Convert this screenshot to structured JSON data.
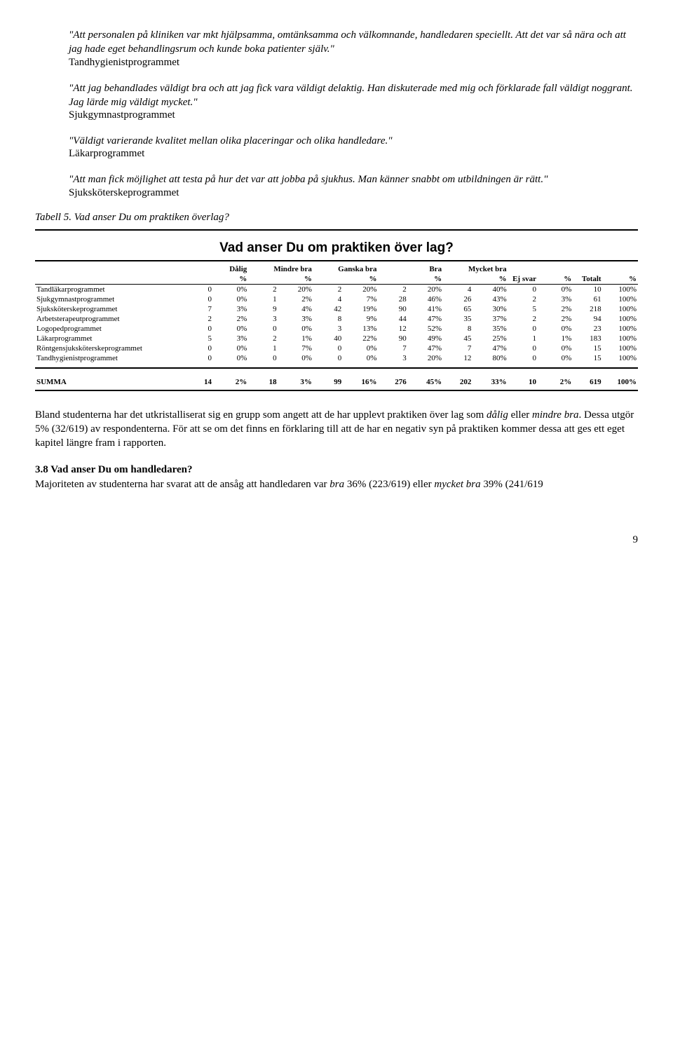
{
  "quotes": [
    {
      "text": "\"Att personalen på kliniken var mkt hjälpsamma, omtänksamma och välkomnande, handledaren speciellt. Att det var så nära och att jag hade eget behandlingsrum och kunde boka patienter själv.\"",
      "source": "Tandhygienistprogrammet"
    },
    {
      "text": "\"Att jag behandlades väldigt bra och att jag fick vara väldigt delaktig. Han diskuterade med mig och förklarade fall väldigt noggrant. Jag lärde mig väldigt mycket.\"",
      "source": "Sjukgymnastprogrammet"
    },
    {
      "text": "\"Väldigt varierande kvalitet mellan olika placeringar och olika handledare.\"",
      "source": "Läkarprogrammet"
    },
    {
      "text": "\"Att man fick möjlighet att testa på hur det var att jobba på sjukhus. Man känner snabbt om utbildningen är rätt.\"",
      "source": "Sjuksköterskeprogrammet"
    }
  ],
  "caption": "Tabell 5. Vad anser Du om praktiken överlag?",
  "table_title": "Vad anser Du om praktiken över lag?",
  "headers": {
    "c1": "Dålig",
    "c2": "Mindre bra",
    "c3": "Ganska bra",
    "c4": "Bra",
    "c5": "Mycket bra",
    "c6": "Ej svar",
    "c7": "Totalt",
    "pct": "%"
  },
  "rows": [
    {
      "label": "Tandläkarprogrammet",
      "n1": "0",
      "p1": "0%",
      "n2": "2",
      "p2": "20%",
      "n3": "2",
      "p3": "20%",
      "n4": "2",
      "p4": "20%",
      "n5": "4",
      "p5": "40%",
      "n6": "0",
      "p6": "0%",
      "n7": "10",
      "p7": "100%"
    },
    {
      "label": "Sjukgymnastprogrammet",
      "n1": "0",
      "p1": "0%",
      "n2": "1",
      "p2": "2%",
      "n3": "4",
      "p3": "7%",
      "n4": "28",
      "p4": "46%",
      "n5": "26",
      "p5": "43%",
      "n6": "2",
      "p6": "3%",
      "n7": "61",
      "p7": "100%"
    },
    {
      "label": "Sjuksköterskeprogrammet",
      "n1": "7",
      "p1": "3%",
      "n2": "9",
      "p2": "4%",
      "n3": "42",
      "p3": "19%",
      "n4": "90",
      "p4": "41%",
      "n5": "65",
      "p5": "30%",
      "n6": "5",
      "p6": "2%",
      "n7": "218",
      "p7": "100%"
    },
    {
      "label": "Arbetsterapeutprogrammet",
      "n1": "2",
      "p1": "2%",
      "n2": "3",
      "p2": "3%",
      "n3": "8",
      "p3": "9%",
      "n4": "44",
      "p4": "47%",
      "n5": "35",
      "p5": "37%",
      "n6": "2",
      "p6": "2%",
      "n7": "94",
      "p7": "100%"
    },
    {
      "label": "Logopedprogrammet",
      "n1": "0",
      "p1": "0%",
      "n2": "0",
      "p2": "0%",
      "n3": "3",
      "p3": "13%",
      "n4": "12",
      "p4": "52%",
      "n5": "8",
      "p5": "35%",
      "n6": "0",
      "p6": "0%",
      "n7": "23",
      "p7": "100%"
    },
    {
      "label": "Läkarprogrammet",
      "n1": "5",
      "p1": "3%",
      "n2": "2",
      "p2": "1%",
      "n3": "40",
      "p3": "22%",
      "n4": "90",
      "p4": "49%",
      "n5": "45",
      "p5": "25%",
      "n6": "1",
      "p6": "1%",
      "n7": "183",
      "p7": "100%"
    },
    {
      "label": "Röntgensjuksköterskeprogrammet",
      "n1": "0",
      "p1": "0%",
      "n2": "1",
      "p2": "7%",
      "n3": "0",
      "p3": "0%",
      "n4": "7",
      "p4": "47%",
      "n5": "7",
      "p5": "47%",
      "n6": "0",
      "p6": "0%",
      "n7": "15",
      "p7": "100%"
    },
    {
      "label": "Tandhygienistprogrammet",
      "n1": "0",
      "p1": "0%",
      "n2": "0",
      "p2": "0%",
      "n3": "0",
      "p3": "0%",
      "n4": "3",
      "p4": "20%",
      "n5": "12",
      "p5": "80%",
      "n6": "0",
      "p6": "0%",
      "n7": "15",
      "p7": "100%"
    }
  ],
  "sum": {
    "label": "SUMMA",
    "n1": "14",
    "p1": "2%",
    "n2": "18",
    "p2": "3%",
    "n3": "99",
    "p3": "16%",
    "n4": "276",
    "p4": "45%",
    "n5": "202",
    "p5": "33%",
    "n6": "10",
    "p6": "2%",
    "n7": "619",
    "p7": "100%"
  },
  "body_para": "Bland studenterna har det utkristalliserat sig en grupp som angett att de har upplevt praktiken över lag som <i>dålig</i> eller <i>mindre bra</i>. Dessa utgör 5% (32/619) av respondenterna. För att se om det finns en förklaring till att de har en negativ syn på praktiken kommer dessa att ges ett eget kapitel längre fram i rapporten.",
  "section_heading": "3.8 Vad anser Du om handledaren?",
  "section_para": "Majoriteten av studenterna har svarat att de ansåg att handledaren var <i>bra</i> 36% (223/619) eller <i>mycket bra</i> 39% (241/619",
  "page_number": "9"
}
